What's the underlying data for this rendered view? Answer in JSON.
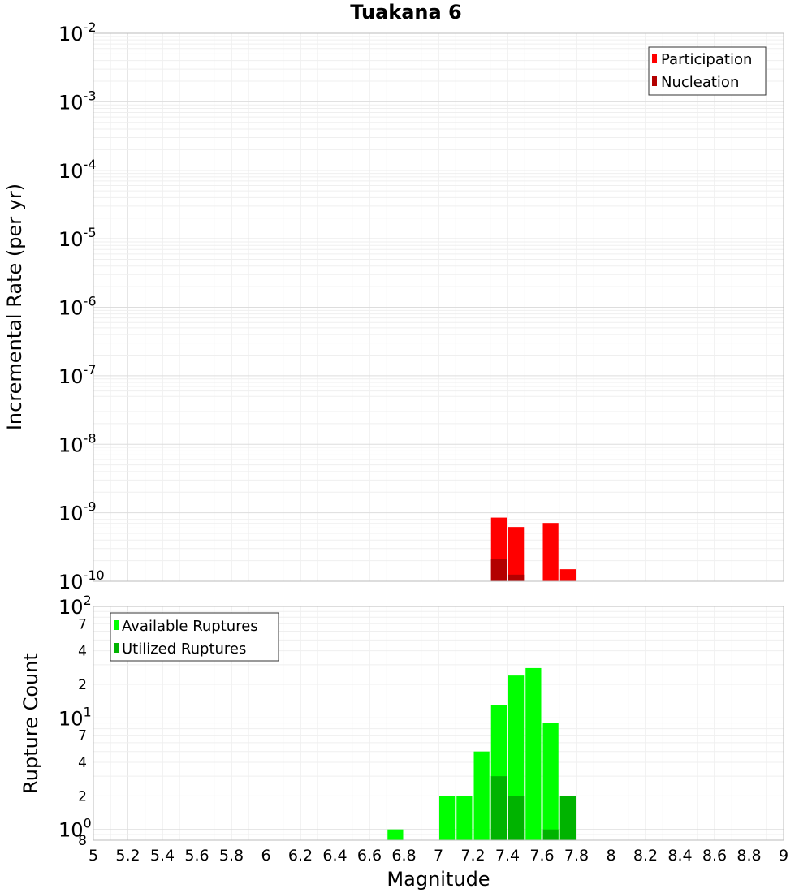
{
  "chart_data": [
    {
      "type": "bar",
      "title": "Tuakana 6",
      "xlabel": "",
      "ylabel": "Incremental Rate (per yr)",
      "yscale": "log",
      "ylim": [
        1e-10,
        0.01
      ],
      "xlim": [
        5,
        9
      ],
      "bar_width": 0.1,
      "y_tick_labels": [
        {
          "base": "10",
          "exp": "-2"
        },
        {
          "base": "10",
          "exp": "-3"
        },
        {
          "base": "10",
          "exp": "-4"
        },
        {
          "base": "10",
          "exp": "-5"
        },
        {
          "base": "10",
          "exp": "-6"
        },
        {
          "base": "10",
          "exp": "-7"
        },
        {
          "base": "10",
          "exp": "-8"
        },
        {
          "base": "10",
          "exp": "-9"
        },
        {
          "base": "10",
          "exp": "-10"
        }
      ],
      "grid": true,
      "legend_position": "top-right",
      "series": [
        {
          "name": "Participation",
          "color": "#ff0000",
          "x": [
            7.35,
            7.45,
            7.65,
            7.75
          ],
          "values": [
            8.5e-10,
            6.2e-10,
            7.1e-10,
            1.5e-10
          ]
        },
        {
          "name": "Nucleation",
          "color": "#b30000",
          "x": [
            7.35,
            7.45
          ],
          "values": [
            2.1e-10,
            1.25e-10
          ]
        }
      ]
    },
    {
      "type": "bar",
      "title": "",
      "xlabel": "Magnitude",
      "ylabel": "Rupture Count",
      "yscale": "log",
      "ylim": [
        0.8,
        100
      ],
      "xlim": [
        5,
        9
      ],
      "bar_width": 0.1,
      "x_tick_labels": [
        "5",
        "5.2",
        "5.4",
        "5.6",
        "5.8",
        "6",
        "6.2",
        "6.4",
        "6.6",
        "6.8",
        "7",
        "7.2",
        "7.4",
        "7.6",
        "7.8",
        "8",
        "8.2",
        "8.4",
        "8.6",
        "8.8",
        "9"
      ],
      "y_tick_labels": [
        {
          "value": 100,
          "base": "10",
          "exp": "2"
        },
        {
          "value": 70,
          "label": "7"
        },
        {
          "value": 40,
          "label": "4"
        },
        {
          "value": 20,
          "label": "2"
        },
        {
          "value": 10,
          "base": "10",
          "exp": "1"
        },
        {
          "value": 7,
          "label": "7"
        },
        {
          "value": 4,
          "label": "4"
        },
        {
          "value": 2,
          "label": "2"
        },
        {
          "value": 1,
          "base": "10",
          "exp": "0"
        },
        {
          "value": 0.8,
          "label": "8"
        }
      ],
      "grid": true,
      "legend_position": "top-left",
      "series": [
        {
          "name": "Available Ruptures",
          "color": "#00ff00",
          "x": [
            6.75,
            7.05,
            7.15,
            7.25,
            7.35,
            7.45,
            7.55,
            7.65,
            7.75
          ],
          "values": [
            1,
            2,
            2,
            5,
            13,
            24,
            28,
            9,
            2
          ]
        },
        {
          "name": "Utilized Ruptures",
          "color": "#00b300",
          "x": [
            7.35,
            7.45,
            7.65,
            7.75
          ],
          "values": [
            3,
            2,
            1,
            2
          ]
        }
      ]
    }
  ]
}
